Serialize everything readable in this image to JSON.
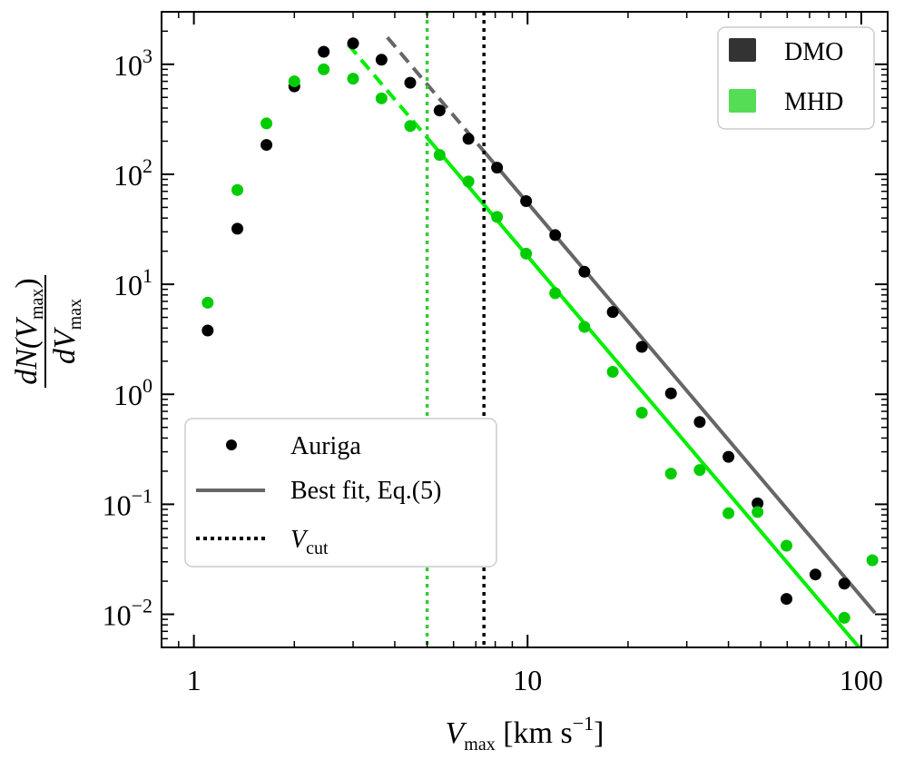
{
  "chart_data": {
    "type": "scatter",
    "xscale": "log",
    "yscale": "log",
    "xlim": [
      0.8,
      120
    ],
    "ylim": [
      0.005,
      3000
    ],
    "xticks": [
      {
        "value": 1,
        "label": "1"
      },
      {
        "value": 10,
        "label": "10"
      },
      {
        "value": 100,
        "label": "100"
      }
    ],
    "yticks": [
      {
        "value": 0.01,
        "mant": "10",
        "exp": "−2"
      },
      {
        "value": 0.1,
        "mant": "10",
        "exp": "−1"
      },
      {
        "value": 1,
        "mant": "10",
        "exp": "0"
      },
      {
        "value": 10,
        "mant": "10",
        "exp": "1"
      },
      {
        "value": 100,
        "mant": "10",
        "exp": "2"
      },
      {
        "value": 1000,
        "mant": "10",
        "exp": "3"
      }
    ],
    "xlabel": {
      "main": "V",
      "sub": "max",
      "unit": " [km s",
      "unit_sup": "−1",
      "unit_close": "]"
    },
    "ylabel": {
      "num": "dN(V",
      "num_sub": "max",
      "num_close": ")",
      "den": "dV",
      "den_sub": "max"
    },
    "series": [
      {
        "name": "DMO",
        "color": "#000000",
        "fit_color": "#666666",
        "vcut": 7.4,
        "fit": {
          "amplitude_at_10": 55,
          "slope": -3.58,
          "x_solid_start": 7.4,
          "x_dashed_start": 3.8,
          "x_end": 110
        },
        "points": [
          [
            1.1,
            3.8
          ],
          [
            1.35,
            32
          ],
          [
            1.65,
            185
          ],
          [
            2.0,
            630
          ],
          [
            2.45,
            1300
          ],
          [
            3.0,
            1550
          ],
          [
            3.65,
            1100
          ],
          [
            4.45,
            680
          ],
          [
            5.45,
            380
          ],
          [
            6.65,
            210
          ],
          [
            8.1,
            115
          ],
          [
            9.9,
            57
          ],
          [
            12.1,
            28
          ],
          [
            14.8,
            13
          ],
          [
            18.0,
            5.6
          ],
          [
            22.0,
            2.7
          ],
          [
            26.9,
            1.02
          ],
          [
            32.8,
            0.56
          ],
          [
            40.0,
            0.27
          ],
          [
            48.9,
            0.102
          ],
          [
            59.7,
            0.0138
          ],
          [
            72.9,
            0.023
          ],
          [
            89.0,
            0.019
          ]
        ]
      },
      {
        "name": "MHD",
        "color": "#00cc00",
        "fit_color": "#00ee00",
        "vcut": 5.0,
        "fit": {
          "amplitude_at_10": 18,
          "slope": -3.58,
          "x_solid_start": 5.0,
          "x_dashed_start": 2.9,
          "x_end": 110
        },
        "points": [
          [
            1.1,
            6.8
          ],
          [
            1.35,
            72
          ],
          [
            1.65,
            290
          ],
          [
            2.0,
            700
          ],
          [
            2.45,
            900
          ],
          [
            3.0,
            740
          ],
          [
            3.65,
            490
          ],
          [
            4.45,
            275
          ],
          [
            5.45,
            150
          ],
          [
            6.65,
            86
          ],
          [
            8.1,
            41
          ],
          [
            9.9,
            19
          ],
          [
            12.1,
            8.3
          ],
          [
            14.8,
            4.1
          ],
          [
            18.0,
            1.6
          ],
          [
            22.0,
            0.68
          ],
          [
            26.9,
            0.19
          ],
          [
            32.8,
            0.205
          ],
          [
            40.0,
            0.083
          ],
          [
            48.9,
            0.085
          ],
          [
            59.7,
            0.042
          ],
          [
            89.0,
            0.0093
          ],
          [
            108.0,
            0.031
          ]
        ]
      }
    ],
    "legend_series": {
      "placement": "top-right",
      "entries": [
        {
          "label": "DMO",
          "color": "#333333"
        },
        {
          "label": "MHD",
          "color": "#55dd55"
        }
      ]
    },
    "legend_style": {
      "placement": "lower-left",
      "entries": [
        {
          "kind": "marker",
          "label": "Auriga"
        },
        {
          "kind": "line",
          "label": "Best fit, Eq.(5)"
        },
        {
          "kind": "dotted",
          "label": "V",
          "label_sub": "cut"
        }
      ]
    }
  }
}
